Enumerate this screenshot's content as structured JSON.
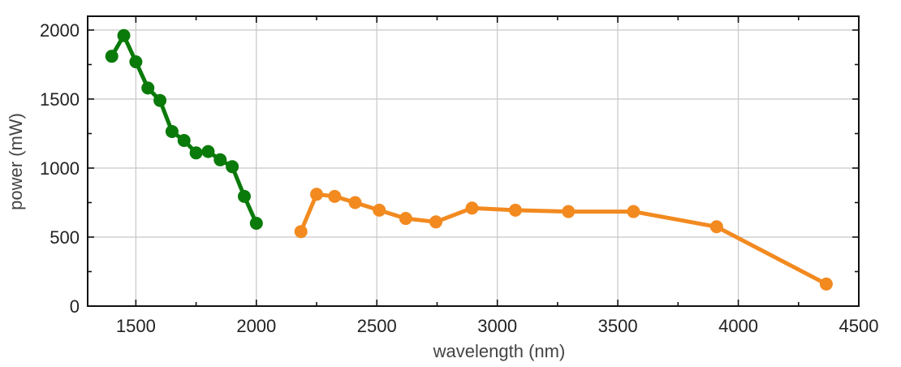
{
  "chart_data": {
    "type": "line",
    "title": "",
    "xlabel": "wavelength (nm)",
    "ylabel": "power (mW)",
    "xlim": [
      1300,
      4500
    ],
    "ylim": [
      0,
      2100
    ],
    "xticks": [
      1500,
      2000,
      2500,
      3000,
      3500,
      4000,
      4500
    ],
    "yticks": [
      0,
      500,
      1000,
      1500,
      2000
    ],
    "grid": true,
    "legend": "none",
    "series": [
      {
        "color": "#0a7a0a",
        "x": [
          1400,
          1450,
          1500,
          1550,
          1600,
          1650,
          1700,
          1750,
          1800,
          1850,
          1900,
          1950,
          2000
        ],
        "y": [
          1810,
          1960,
          1770,
          1580,
          1490,
          1265,
          1200,
          1110,
          1120,
          1060,
          1010,
          795,
          600
        ]
      },
      {
        "color": "#f28a20",
        "x": [
          2185,
          2250,
          2325,
          2410,
          2510,
          2620,
          2745,
          2895,
          3075,
          3295,
          3565,
          3910,
          4365
        ],
        "y": [
          540,
          810,
          795,
          750,
          695,
          635,
          610,
          710,
          695,
          685,
          685,
          575,
          160
        ]
      }
    ]
  }
}
